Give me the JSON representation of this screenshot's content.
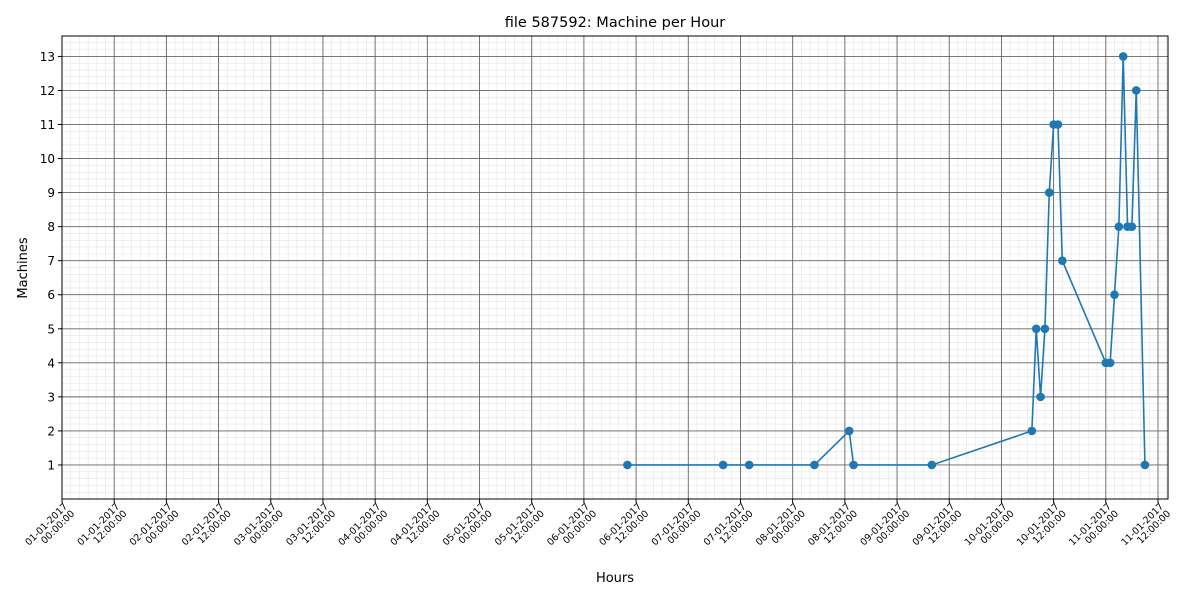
{
  "chart_data": {
    "type": "line",
    "title": "file 587592: Machine per Hour",
    "x_label": "Hours",
    "y_label": "Machines",
    "x": [
      "2017-01-06T10:00:00",
      "2017-01-07T08:00:00",
      "2017-01-07T14:00:00",
      "2017-01-08T05:00:00",
      "2017-01-08T13:00:00",
      "2017-01-08T14:00:00",
      "2017-01-09T08:00:00",
      "2017-01-10T07:00:00",
      "2017-01-10T08:00:00",
      "2017-01-10T09:00:00",
      "2017-01-10T10:00:00",
      "2017-01-10T11:00:00",
      "2017-01-10T12:00:00",
      "2017-01-10T13:00:00",
      "2017-01-10T14:00:00",
      "2017-01-11T00:00:00",
      "2017-01-11T01:00:00",
      "2017-01-11T02:00:00",
      "2017-01-11T03:00:00",
      "2017-01-11T04:00:00",
      "2017-01-11T05:00:00",
      "2017-01-11T06:00:00",
      "2017-01-11T07:00:00",
      "2017-01-11T09:00:00"
    ],
    "series": [
      {
        "color": "#1f77b4",
        "values": [
          1,
          1,
          1,
          1,
          2,
          1,
          1,
          2,
          5,
          3,
          5,
          9,
          11,
          11,
          7,
          4,
          4,
          6,
          8,
          13,
          8,
          8,
          12,
          1
        ]
      }
    ],
    "xlim": [
      "2017-01-01T00:00:00",
      "2017-01-11T14:18:00"
    ],
    "xticks": [
      {
        "value": "2017-01-01T00:00:00",
        "label": "01-01-2017 00:00:00"
      },
      {
        "value": "2017-01-01T12:00:00",
        "label": "01-01-2017 12:00:00"
      },
      {
        "value": "2017-01-02T00:00:00",
        "label": "02-01-2017 00:00:00"
      },
      {
        "value": "2017-01-02T12:00:00",
        "label": "02-01-2017 12:00:00"
      },
      {
        "value": "2017-01-03T00:00:00",
        "label": "03-01-2017 00:00:00"
      },
      {
        "value": "2017-01-03T12:00:00",
        "label": "03-01-2017 12:00:00"
      },
      {
        "value": "2017-01-04T00:00:00",
        "label": "04-01-2017 00:00:00"
      },
      {
        "value": "2017-01-04T12:00:00",
        "label": "04-01-2017 12:00:00"
      },
      {
        "value": "2017-01-05T00:00:00",
        "label": "05-01-2017 00:00:00"
      },
      {
        "value": "2017-01-05T12:00:00",
        "label": "05-01-2017 12:00:00"
      },
      {
        "value": "2017-01-06T00:00:00",
        "label": "06-01-2017 00:00:00"
      },
      {
        "value": "2017-01-06T12:00:00",
        "label": "06-01-2017 12:00:00"
      },
      {
        "value": "2017-01-07T00:00:00",
        "label": "07-01-2017 00:00:00"
      },
      {
        "value": "2017-01-07T12:00:00",
        "label": "07-01-2017 12:00:00"
      },
      {
        "value": "2017-01-08T00:00:00",
        "label": "08-01-2017 00:00:00"
      },
      {
        "value": "2017-01-08T12:00:00",
        "label": "08-01-2017 12:00:00"
      },
      {
        "value": "2017-01-09T00:00:00",
        "label": "09-01-2017 00:00:00"
      },
      {
        "value": "2017-01-09T12:00:00",
        "label": "09-01-2017 12:00:00"
      },
      {
        "value": "2017-01-10T00:00:00",
        "label": "10-01-2017 00:00:00"
      },
      {
        "value": "2017-01-10T12:00:00",
        "label": "10-01-2017 12:00:00"
      },
      {
        "value": "2017-01-11T00:00:00",
        "label": "11-01-2017 00:00:00"
      },
      {
        "value": "2017-01-11T12:00:00",
        "label": "11-01-2017 12:00:00"
      }
    ],
    "ylim": [
      0,
      13.6
    ],
    "yticks": [
      1,
      2,
      3,
      4,
      5,
      6,
      7,
      8,
      9,
      10,
      11,
      12,
      13
    ],
    "grid": true,
    "minor_grid": true
  }
}
